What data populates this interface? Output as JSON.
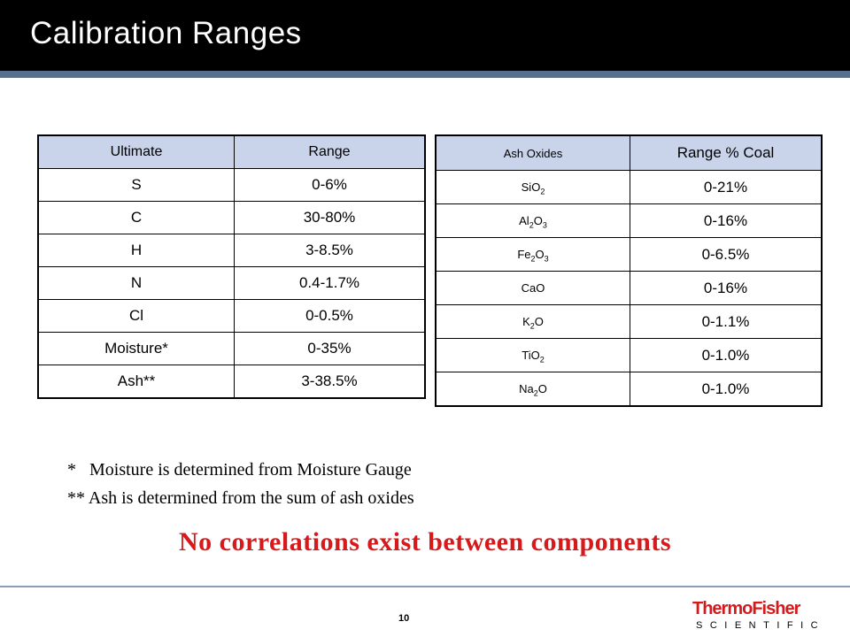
{
  "slide": {
    "title": "Calibration Ranges",
    "page_number": "10"
  },
  "ultimate_table": {
    "headers": [
      "Ultimate",
      "Range"
    ],
    "rows": [
      [
        "S",
        "0-6%"
      ],
      [
        "C",
        "30-80%"
      ],
      [
        "H",
        "3-8.5%"
      ],
      [
        "N",
        "0.4-1.7%"
      ],
      [
        "Cl",
        "0-0.5%"
      ],
      [
        "Moisture*",
        "0-35%"
      ],
      [
        "Ash**",
        "3-38.5%"
      ]
    ]
  },
  "ash_table": {
    "headers": [
      "Ash Oxides",
      "Range % Coal"
    ],
    "rows": [
      {
        "oxide": [
          [
            "Si",
            ""
          ],
          [
            "O",
            "2"
          ]
        ],
        "range": "0-21%"
      },
      {
        "oxide": [
          [
            "Al",
            "2"
          ],
          [
            "O",
            "3"
          ]
        ],
        "range": "0-16%"
      },
      {
        "oxide": [
          [
            "Fe",
            "2"
          ],
          [
            "O",
            "3"
          ]
        ],
        "range": "0-6.5%"
      },
      {
        "oxide": [
          [
            "CaO",
            ""
          ]
        ],
        "range": "0-16%"
      },
      {
        "oxide": [
          [
            "K",
            "2"
          ],
          [
            "O",
            ""
          ]
        ],
        "range": "0-1.1%"
      },
      {
        "oxide": [
          [
            "Ti",
            ""
          ],
          [
            "O",
            "2"
          ]
        ],
        "range": "0-1.0%"
      },
      {
        "oxide": [
          [
            "Na",
            "2"
          ],
          [
            "O",
            ""
          ]
        ],
        "range": "0-1.0%"
      }
    ]
  },
  "footnotes": {
    "moisture": "*   Moisture is determined from Moisture Gauge",
    "ash": "** Ash is determined from the sum of ash oxides"
  },
  "emphasis": "No correlations exist between components",
  "logo": {
    "main": "ThermoFisher",
    "sub": "SCIENTIFIC",
    "color": "#d7191b"
  },
  "colors": {
    "title_bar": "#000000",
    "title_stripe": "#56708f",
    "table_header": "#c9d3ea",
    "emphasis": "#d7191b"
  }
}
